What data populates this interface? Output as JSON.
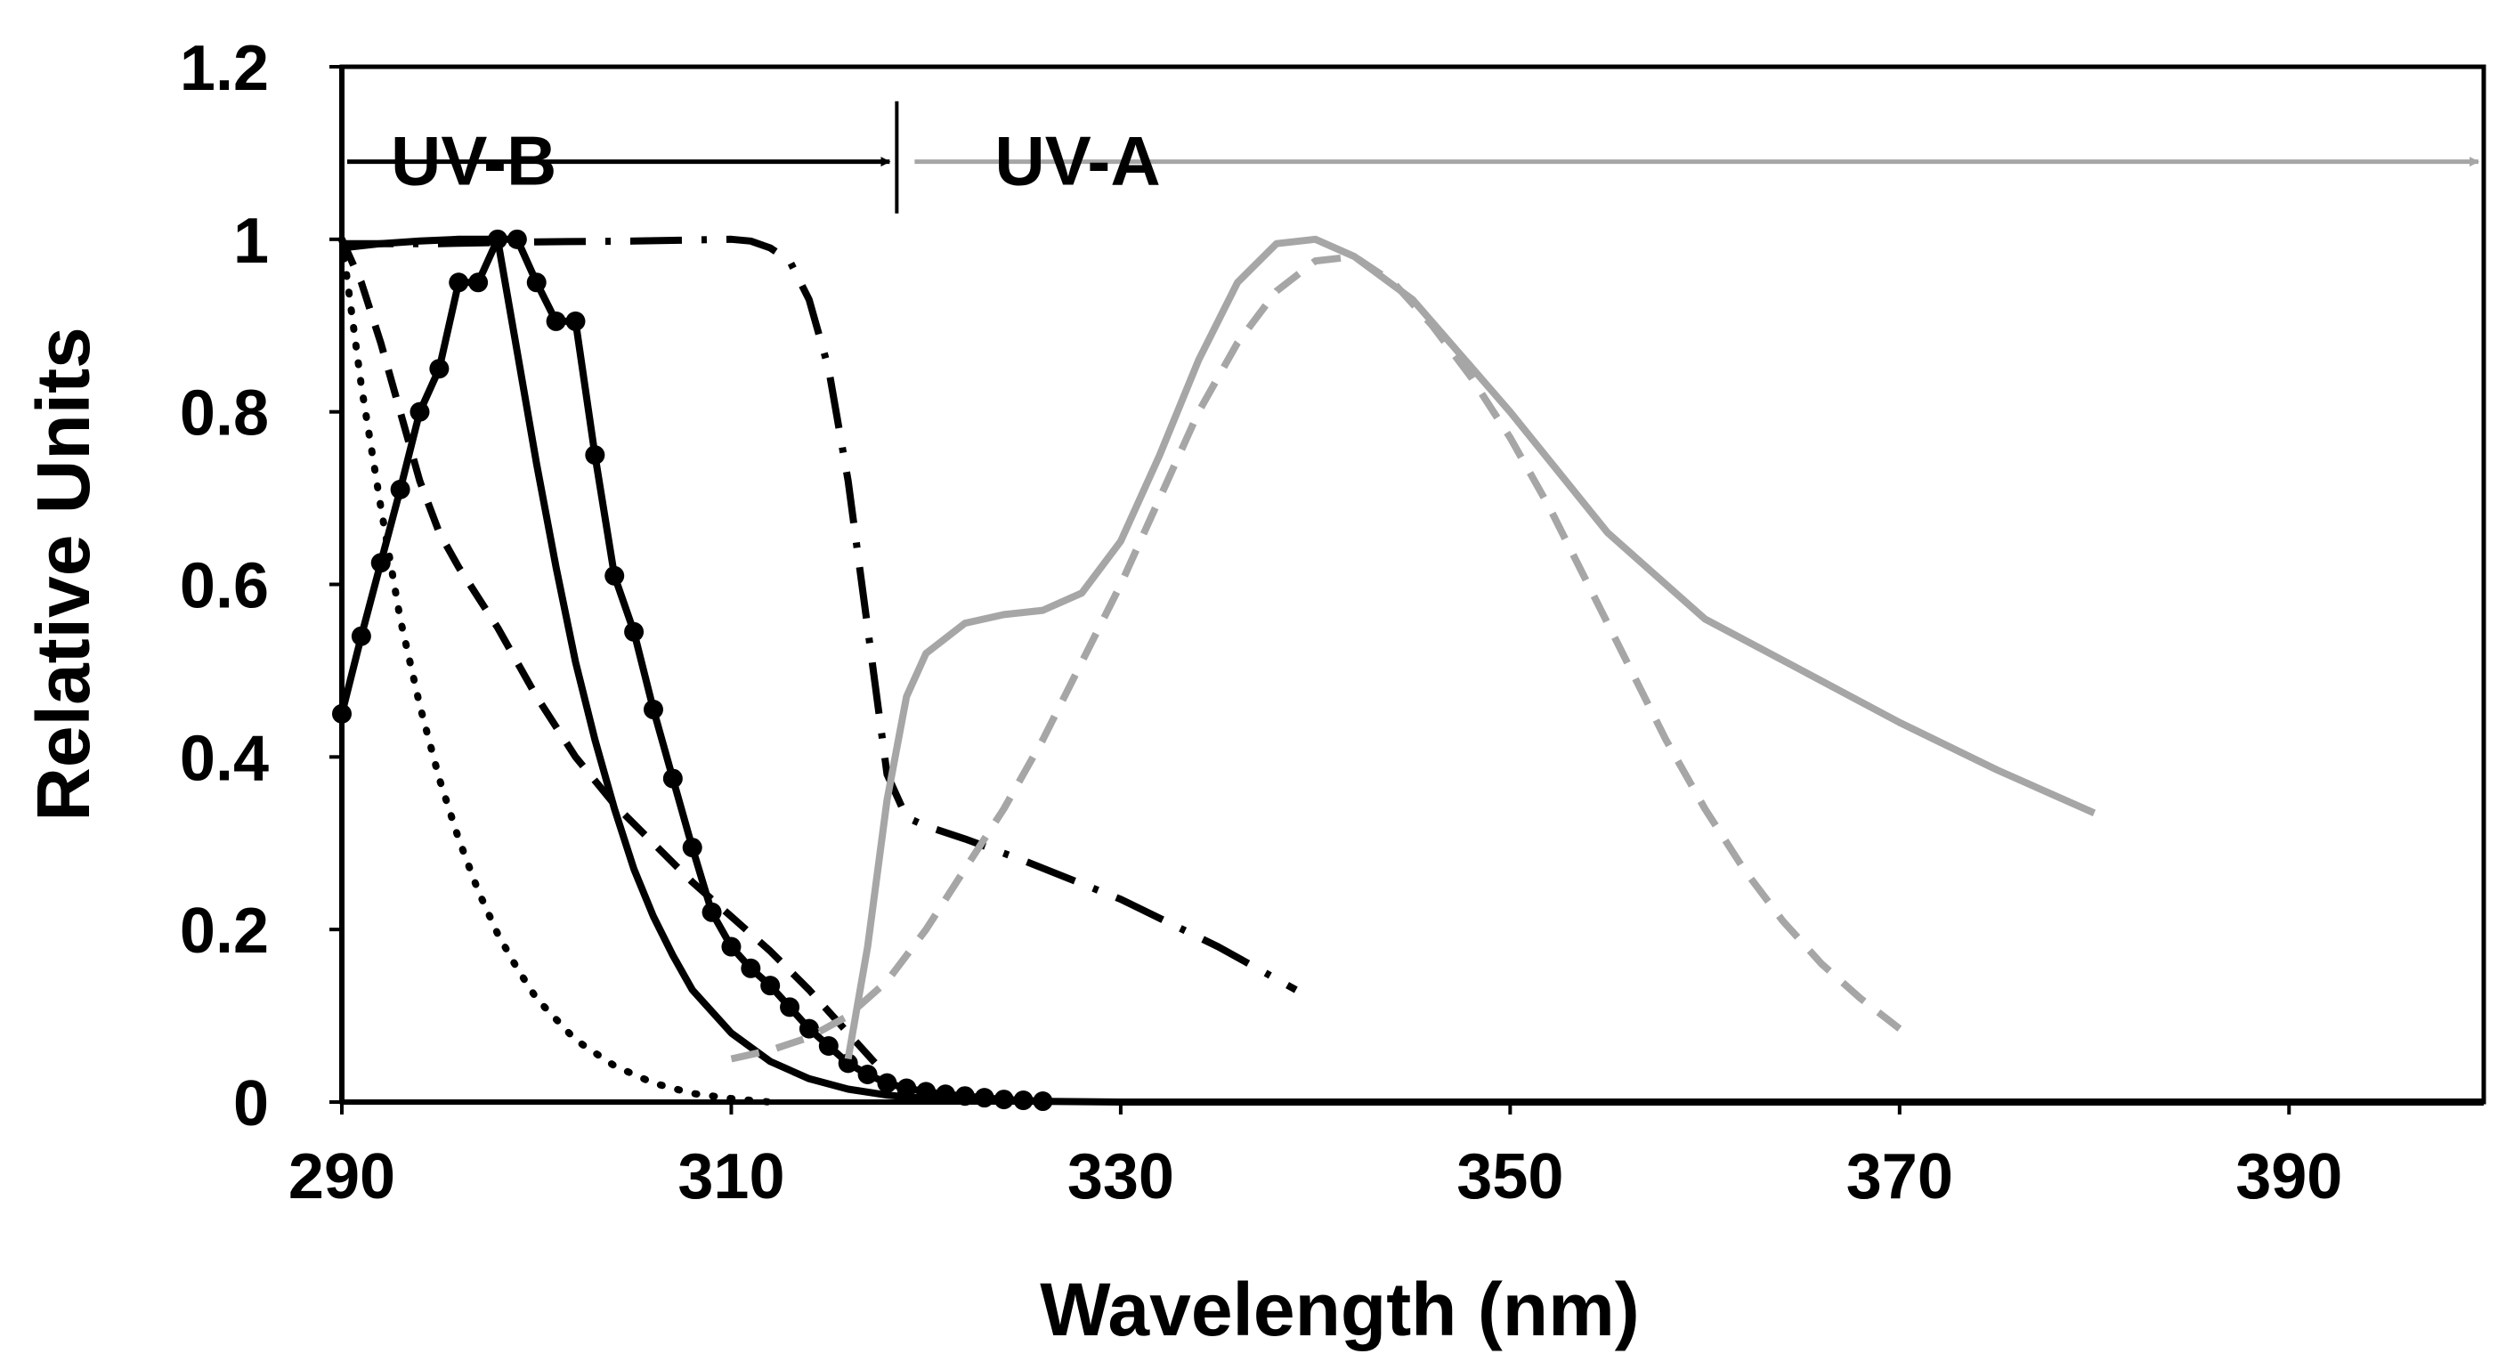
{
  "chart_data": {
    "type": "line",
    "title": "",
    "xlabel": "Wavelength (nm)",
    "ylabel": "Relative Units",
    "xlim": [
      290,
      400
    ],
    "ylim": [
      0,
      1.2
    ],
    "xticks": [
      290,
      310,
      330,
      350,
      370,
      390
    ],
    "yticks": [
      {
        "value": 0,
        "label": "0"
      },
      {
        "value": 0.2,
        "label": "0.2"
      },
      {
        "value": 0.4,
        "label": "0.4"
      },
      {
        "value": 0.6,
        "label": "0.6"
      },
      {
        "value": 0.8,
        "label": "0.8"
      },
      {
        "value": 1,
        "label": "1"
      },
      {
        "value": 1.2,
        "label": "1.2"
      }
    ],
    "grid": false,
    "legend": "none",
    "regions": [
      {
        "label": "UV-B",
        "x_start": 290,
        "x_end": 318.5,
        "y": 1.09,
        "color": "#000000"
      },
      {
        "label": "UV-A",
        "x_start": 318.5,
        "x_end": 400,
        "y": 1.09,
        "color": "#a6a6a6"
      }
    ],
    "region_divider": 318.5,
    "series": [
      {
        "name": "dotted-black",
        "color": "#000000",
        "style": "dotted",
        "markers": false,
        "x": [
          290,
          291,
          292,
          293,
          294,
          295,
          296,
          297,
          298,
          299,
          300,
          302,
          304,
          306,
          308,
          310,
          312
        ],
        "y": [
          1.0,
          0.83,
          0.69,
          0.56,
          0.46,
          0.375,
          0.305,
          0.245,
          0.195,
          0.155,
          0.12,
          0.072,
          0.042,
          0.022,
          0.01,
          0.004,
          0.0
        ]
      },
      {
        "name": "solid-black",
        "color": "#000000",
        "style": "solid",
        "markers": false,
        "x": [
          290,
          292,
          294,
          296,
          298,
          299,
          300,
          301,
          302,
          303,
          304,
          305,
          306,
          307,
          308,
          310,
          312,
          314,
          316,
          318,
          320,
          325,
          330,
          340,
          350,
          360,
          370,
          380,
          390,
          400
        ],
        "y": [
          0.99,
          0.995,
          0.998,
          1.0,
          1.0,
          0.87,
          0.74,
          0.62,
          0.51,
          0.42,
          0.34,
          0.27,
          0.215,
          0.17,
          0.13,
          0.08,
          0.047,
          0.027,
          0.015,
          0.008,
          0.004,
          0.001,
          0.0,
          0.0,
          0.0,
          0.0,
          0.0,
          0.0,
          0.0,
          0.0
        ]
      },
      {
        "name": "dashed-black",
        "color": "#000000",
        "style": "dashed",
        "markers": false,
        "x": [
          290,
          291,
          292,
          293,
          294,
          295,
          296,
          298,
          300,
          302,
          304,
          306,
          308,
          310,
          312,
          314,
          316,
          318
        ],
        "y": [
          1.0,
          0.95,
          0.88,
          0.8,
          0.72,
          0.66,
          0.62,
          0.55,
          0.47,
          0.4,
          0.345,
          0.3,
          0.255,
          0.215,
          0.175,
          0.13,
          0.08,
          0.03
        ]
      },
      {
        "name": "dot-marker-black",
        "color": "#000000",
        "style": "solid",
        "markers": true,
        "x": [
          290,
          291,
          292,
          293,
          294,
          295,
          296,
          297,
          298,
          299,
          300,
          301,
          302,
          303,
          304,
          305,
          306,
          307,
          308,
          309,
          310,
          311,
          312,
          313,
          314,
          315,
          316,
          317,
          318,
          319,
          320,
          321,
          322,
          323,
          324,
          325,
          326
        ],
        "y": [
          0.45,
          0.54,
          0.625,
          0.71,
          0.8,
          0.85,
          0.95,
          0.95,
          1.0,
          1.0,
          0.95,
          0.905,
          0.905,
          0.75,
          0.61,
          0.545,
          0.455,
          0.375,
          0.295,
          0.22,
          0.18,
          0.155,
          0.135,
          0.11,
          0.085,
          0.065,
          0.045,
          0.032,
          0.022,
          0.016,
          0.012,
          0.009,
          0.007,
          0.005,
          0.003,
          0.002,
          0.001
        ]
      },
      {
        "name": "dash-dot-black",
        "color": "#000000",
        "style": "dashdot",
        "markers": false,
        "x": [
          290,
          295,
          300,
          305,
          310,
          311,
          312,
          313,
          314,
          315,
          316,
          317,
          318,
          319,
          320,
          322,
          325,
          330,
          335,
          339
        ],
        "y": [
          0.995,
          0.995,
          0.997,
          0.998,
          1.0,
          0.998,
          0.99,
          0.975,
          0.93,
          0.85,
          0.72,
          0.55,
          0.38,
          0.33,
          0.32,
          0.305,
          0.28,
          0.235,
          0.18,
          0.13
        ]
      },
      {
        "name": "solid-gray",
        "color": "#a6a6a6",
        "style": "solid",
        "markers": false,
        "x": [
          316,
          317,
          318,
          319,
          320,
          322,
          324,
          326,
          328,
          330,
          332,
          334,
          336,
          338,
          340,
          342,
          345,
          350,
          355,
          360,
          365,
          370,
          375,
          380
        ],
        "y": [
          0.05,
          0.18,
          0.35,
          0.47,
          0.52,
          0.555,
          0.565,
          0.57,
          0.59,
          0.65,
          0.75,
          0.86,
          0.95,
          0.995,
          1.0,
          0.98,
          0.93,
          0.8,
          0.66,
          0.56,
          0.5,
          0.44,
          0.385,
          0.335
        ]
      },
      {
        "name": "dashed-gray",
        "color": "#a6a6a6",
        "style": "dashed",
        "markers": false,
        "x": [
          310,
          312,
          314,
          316,
          318,
          320,
          322,
          324,
          326,
          328,
          330,
          332,
          334,
          336,
          338,
          340,
          342,
          344,
          346,
          348,
          350,
          352,
          354,
          356,
          358,
          360,
          362,
          364,
          366,
          368,
          370
        ],
        "y": [
          0.05,
          0.06,
          0.075,
          0.1,
          0.14,
          0.2,
          0.27,
          0.34,
          0.42,
          0.51,
          0.6,
          0.7,
          0.8,
          0.88,
          0.94,
          0.975,
          0.98,
          0.95,
          0.9,
          0.84,
          0.77,
          0.69,
          0.6,
          0.51,
          0.42,
          0.34,
          0.27,
          0.21,
          0.16,
          0.12,
          0.085
        ]
      }
    ]
  }
}
